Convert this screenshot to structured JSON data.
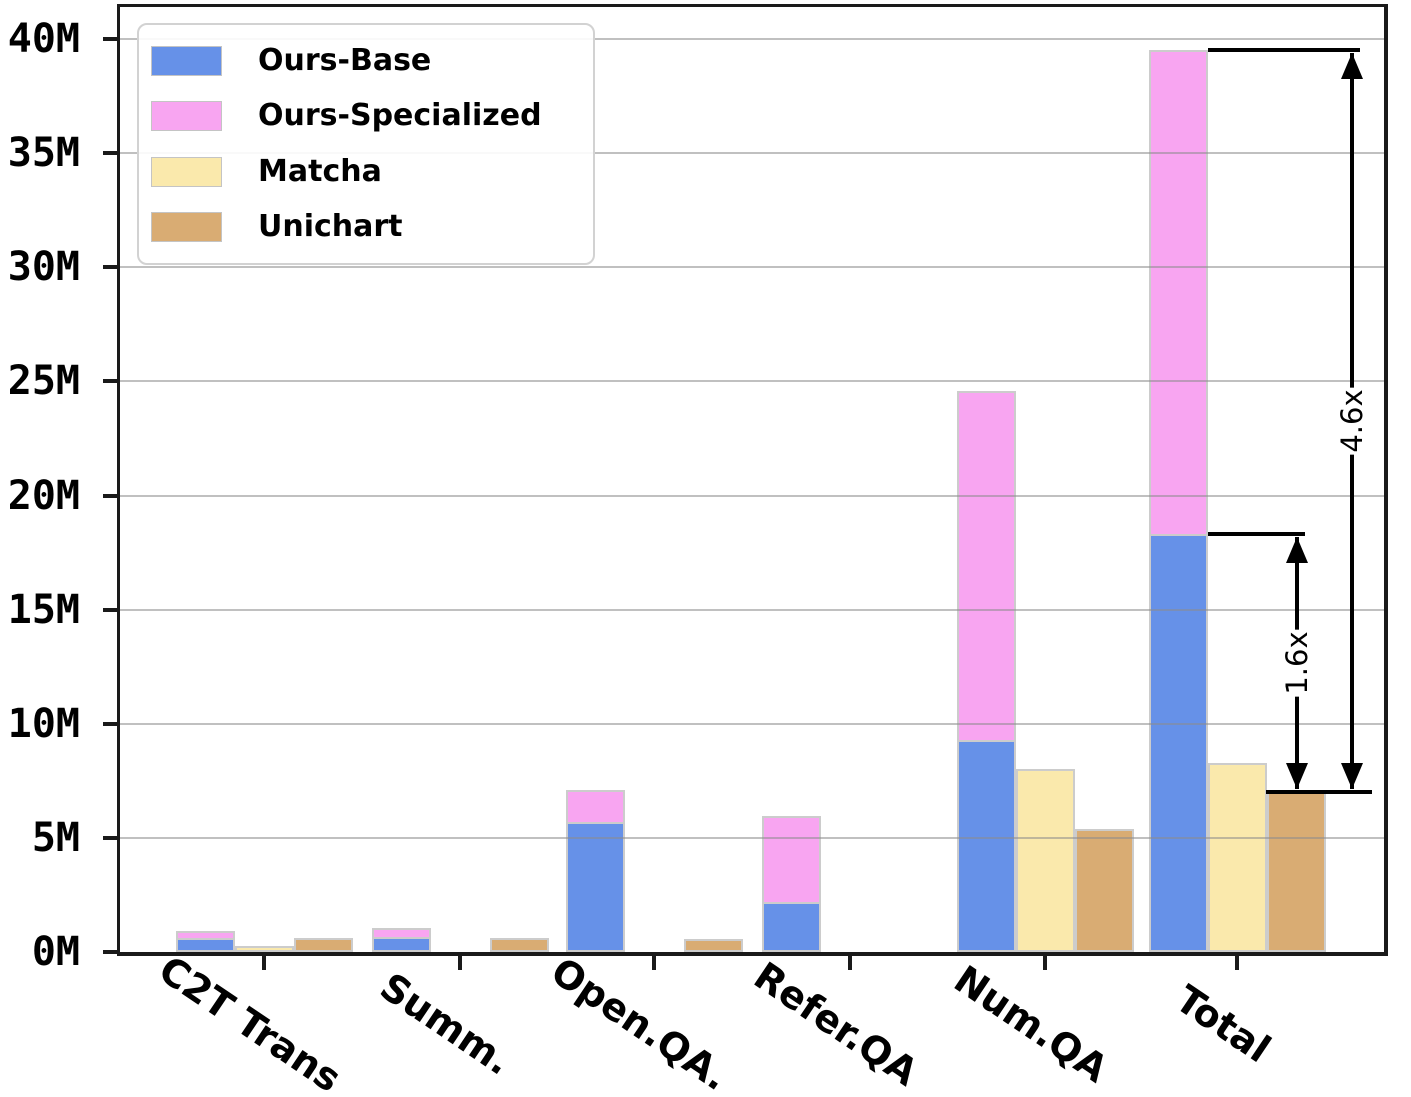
{
  "chart_data": {
    "type": "bar",
    "title": "",
    "unit": "M",
    "categories": [
      "C2T Trans",
      "Summ.",
      "Open.QA.",
      "Refer.QA",
      "Num.QA",
      "Total"
    ],
    "series": [
      {
        "name": "Ours-Base",
        "color": "#6691E8",
        "stack": "ours",
        "values": [
          0.6,
          0.65,
          5.7,
          2.2,
          9.3,
          18.3
        ]
      },
      {
        "name": "Ours-Specialized",
        "color": "#F8A5F1",
        "stack": "ours",
        "values": [
          0.3,
          0.4,
          1.4,
          3.75,
          15.3,
          21.2
        ]
      },
      {
        "name": "Matcha",
        "color": "#FAE9AC",
        "stack": null,
        "values": [
          0.25,
          0,
          0,
          0,
          8.0,
          8.3
        ]
      },
      {
        "name": "Unichart",
        "color": "#D9AC73",
        "stack": null,
        "values": [
          0.6,
          0.6,
          0.55,
          0,
          5.4,
          7.0
        ]
      }
    ],
    "y_axis": {
      "tick_labels": [
        "0M",
        "5M",
        "10M",
        "15M",
        "20M",
        "25M",
        "30M",
        "35M",
        "40M"
      ],
      "tick_values": [
        0,
        5,
        10,
        15,
        20,
        25,
        30,
        35,
        40
      ],
      "ylim": [
        0,
        41.4
      ]
    },
    "x_axis": {
      "label_rotation_deg": 34
    },
    "grid": true,
    "grid_color": "#b0b0b0",
    "bar_edge_color": "#cccccc",
    "legend": {
      "position": "upper-left"
    },
    "annotations": [
      {
        "label": "4.6x",
        "from_m": 39.5,
        "to_m": 7.0
      },
      {
        "label": "1.6x",
        "from_m": 18.3,
        "to_m": 7.0
      }
    ],
    "baseline_marker": {
      "at_m": 7.0,
      "description": "black line on top of Total Unichart bar"
    }
  }
}
